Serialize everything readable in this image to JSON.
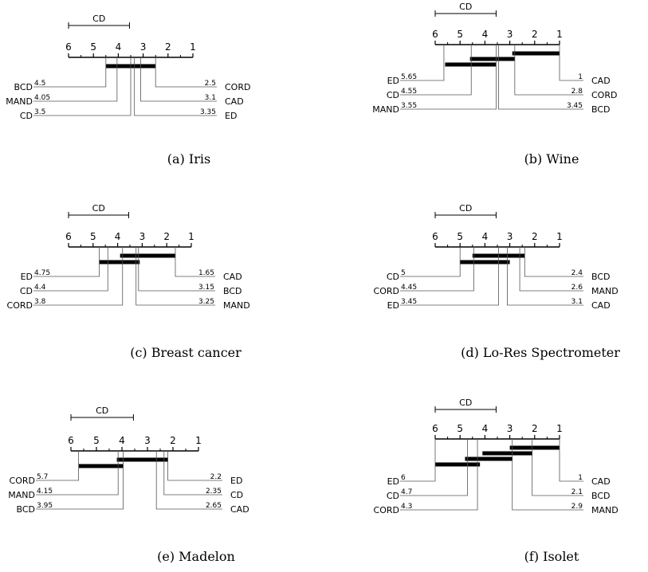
{
  "chart_data": [
    {
      "type": "critical-difference-diagram",
      "caption": "(a) Iris",
      "axis": {
        "ticks": [
          "6",
          "5",
          "4",
          "3",
          "2",
          "1"
        ],
        "range": [
          6,
          1
        ]
      },
      "cd_label": "CD",
      "cd_value": 2.45,
      "left": [
        {
          "name": "BCD",
          "rank": 4.5,
          "rank_label": "4.5"
        },
        {
          "name": "MAND",
          "rank": 4.05,
          "rank_label": "4.05"
        },
        {
          "name": "CD",
          "rank": 3.5,
          "rank_label": "3.5"
        }
      ],
      "right": [
        {
          "name": "CORD",
          "rank": 2.5,
          "rank_label": "2.5"
        },
        {
          "name": "CAD",
          "rank": 3.1,
          "rank_label": "3.1"
        },
        {
          "name": "ED",
          "rank": 3.35,
          "rank_label": "3.35"
        }
      ],
      "cliques": [
        [
          4.5,
          2.5
        ]
      ]
    },
    {
      "type": "critical-difference-diagram",
      "caption": "(b) Wine",
      "axis": {
        "ticks": [
          "6",
          "5",
          "4",
          "3",
          "2",
          "1"
        ],
        "range": [
          6,
          1
        ]
      },
      "cd_label": "CD",
      "cd_value": 2.45,
      "left": [
        {
          "name": "ED",
          "rank": 5.65,
          "rank_label": "5.65"
        },
        {
          "name": "CD",
          "rank": 4.55,
          "rank_label": "4.55"
        },
        {
          "name": "MAND",
          "rank": 3.55,
          "rank_label": "3.55"
        }
      ],
      "right": [
        {
          "name": "CAD",
          "rank": 1,
          "rank_label": "1"
        },
        {
          "name": "CORD",
          "rank": 2.8,
          "rank_label": "2.8"
        },
        {
          "name": "BCD",
          "rank": 3.45,
          "rank_label": "3.45"
        }
      ],
      "cliques": [
        [
          2.9,
          1.0
        ],
        [
          4.6,
          2.8
        ],
        [
          5.6,
          3.55
        ]
      ]
    },
    {
      "type": "critical-difference-diagram",
      "caption": "(c) Breast cancer",
      "axis": {
        "ticks": [
          "6",
          "5",
          "4",
          "3",
          "2",
          "1"
        ],
        "range": [
          6,
          1
        ]
      },
      "cd_label": "CD",
      "cd_value": 2.45,
      "left": [
        {
          "name": "ED",
          "rank": 4.75,
          "rank_label": "4.75"
        },
        {
          "name": "CD",
          "rank": 4.4,
          "rank_label": "4.4"
        },
        {
          "name": "CORD",
          "rank": 3.8,
          "rank_label": "3.8"
        }
      ],
      "right": [
        {
          "name": "CAD",
          "rank": 1.65,
          "rank_label": "1.65"
        },
        {
          "name": "BCD",
          "rank": 3.15,
          "rank_label": "3.15"
        },
        {
          "name": "MAND",
          "rank": 3.25,
          "rank_label": "3.25"
        }
      ],
      "cliques": [
        [
          3.9,
          1.65
        ],
        [
          4.75,
          3.1
        ]
      ]
    },
    {
      "type": "critical-difference-diagram",
      "caption": "(d) Lo-Res Spectrometer",
      "axis": {
        "ticks": [
          "6",
          "5",
          "4",
          "3",
          "2",
          "1"
        ],
        "range": [
          6,
          1
        ]
      },
      "cd_label": "CD",
      "cd_value": 2.45,
      "left": [
        {
          "name": "CD",
          "rank": 5,
          "rank_label": "5"
        },
        {
          "name": "CORD",
          "rank": 4.45,
          "rank_label": "4.45"
        },
        {
          "name": "ED",
          "rank": 3.45,
          "rank_label": "3.45"
        }
      ],
      "right": [
        {
          "name": "BCD",
          "rank": 2.4,
          "rank_label": "2.4"
        },
        {
          "name": "MAND",
          "rank": 2.6,
          "rank_label": "2.6"
        },
        {
          "name": "CAD",
          "rank": 3.1,
          "rank_label": "3.1"
        }
      ],
      "cliques": [
        [
          4.5,
          2.4
        ],
        [
          5.0,
          3.0
        ]
      ]
    },
    {
      "type": "critical-difference-diagram",
      "caption": "(e) Madelon",
      "axis": {
        "ticks": [
          "6",
          "5",
          "4",
          "3",
          "2",
          "1"
        ],
        "range": [
          6,
          1
        ]
      },
      "cd_label": "CD",
      "cd_value": 2.45,
      "left": [
        {
          "name": "CORD",
          "rank": 5.7,
          "rank_label": "5.7"
        },
        {
          "name": "MAND",
          "rank": 4.15,
          "rank_label": "4.15"
        },
        {
          "name": "BCD",
          "rank": 3.95,
          "rank_label": "3.95"
        }
      ],
      "right": [
        {
          "name": "ED",
          "rank": 2.2,
          "rank_label": "2.2"
        },
        {
          "name": "CD",
          "rank": 2.35,
          "rank_label": "2.35"
        },
        {
          "name": "CAD",
          "rank": 2.65,
          "rank_label": "2.65"
        }
      ],
      "cliques": [
        [
          4.2,
          2.2
        ],
        [
          5.7,
          3.95
        ]
      ]
    },
    {
      "type": "critical-difference-diagram",
      "caption": "(f) Isolet",
      "axis": {
        "ticks": [
          "6",
          "5",
          "4",
          "3",
          "2",
          "1"
        ],
        "range": [
          6,
          1
        ]
      },
      "cd_label": "CD",
      "cd_value": 2.45,
      "left": [
        {
          "name": "ED",
          "rank": 6,
          "rank_label": "6"
        },
        {
          "name": "CD",
          "rank": 4.7,
          "rank_label": "4.7"
        },
        {
          "name": "CORD",
          "rank": 4.3,
          "rank_label": "4.3"
        }
      ],
      "right": [
        {
          "name": "CAD",
          "rank": 1,
          "rank_label": "1"
        },
        {
          "name": "BCD",
          "rank": 2.1,
          "rank_label": "2.1"
        },
        {
          "name": "MAND",
          "rank": 2.9,
          "rank_label": "2.9"
        }
      ],
      "cliques": [
        [
          3.0,
          1.0
        ],
        [
          4.1,
          2.1
        ],
        [
          4.8,
          2.9
        ],
        [
          6.0,
          4.2
        ]
      ]
    }
  ]
}
